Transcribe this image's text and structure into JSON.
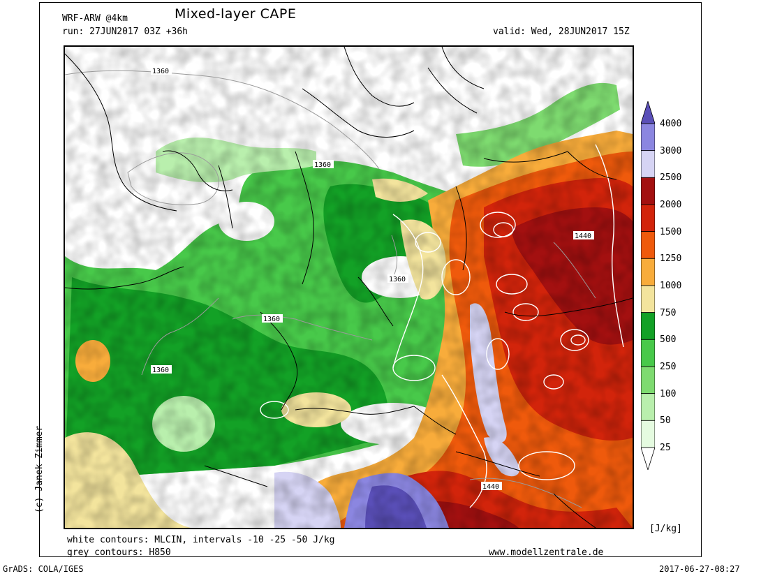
{
  "header": {
    "model": "WRF-ARW @4km",
    "title": "Mixed-layer CAPE",
    "run": "run: 27JUN2017 03Z +36h",
    "valid": "valid: Wed, 28JUN2017 15Z"
  },
  "credit": "(c) Janek Zimmer",
  "contour_labels": [
    "1360",
    "1360",
    "1360",
    "1360",
    "1360",
    "1440",
    "1440"
  ],
  "colorbar": {
    "levels": [
      "4000",
      "3000",
      "2500",
      "2000",
      "1500",
      "1250",
      "1000",
      "750",
      "500",
      "250",
      "100",
      "50",
      "25"
    ],
    "colors": [
      "#5a4fb8",
      "#8b86e0",
      "#d6d4f4",
      "#a31010",
      "#d2240b",
      "#ef5a0c",
      "#f8ac3b",
      "#f3e49d",
      "#13a126",
      "#48c94a",
      "#7edb70",
      "#b9efad",
      "#e5fbe0"
    ],
    "unit": "[J/kg]"
  },
  "footer": {
    "white_contours": "white contours: MLCIN, intervals -10 -25 -50 J/kg",
    "grey_contours": "grey contours: H850",
    "website": "www.modellzentrale.de",
    "software": "GrADS: COLA/IGES",
    "timestamp": "2017-06-27-08:27"
  }
}
